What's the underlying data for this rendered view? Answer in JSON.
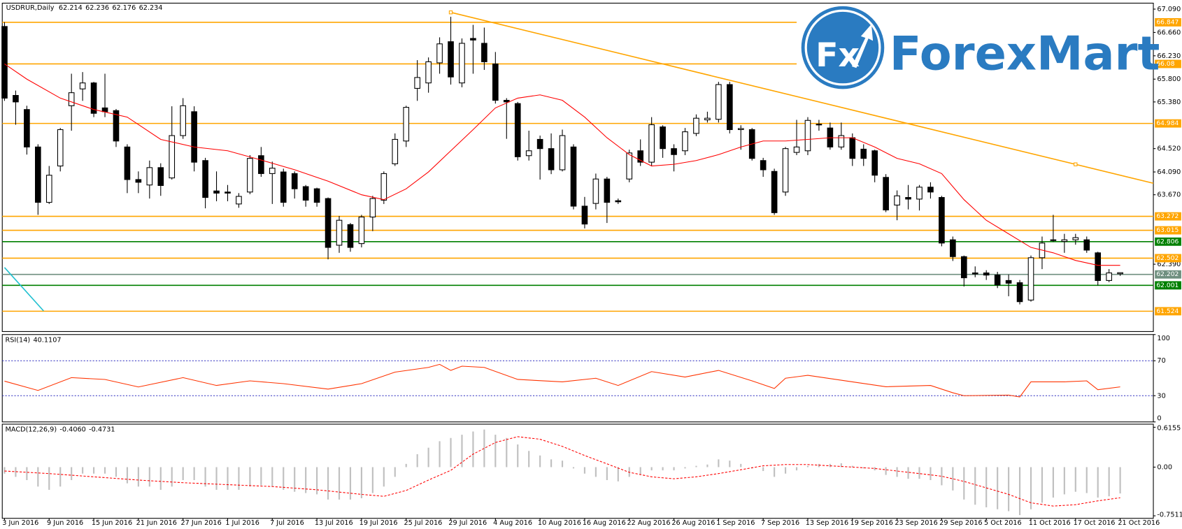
{
  "chart_data": {
    "type": "candlestick",
    "symbol": "USDRUR,Daily",
    "categories": [
      "3 Jun 2016",
      null,
      null,
      null,
      "9 Jun 2016",
      null,
      null,
      null,
      "15 Jun 2016",
      null,
      null,
      null,
      "21 Jun 2016",
      null,
      null,
      null,
      "27 Jun 2016",
      null,
      null,
      null,
      "1 Jul 2016",
      null,
      null,
      null,
      "7 Jul 2016",
      null,
      null,
      null,
      "13 Jul 2016",
      null,
      null,
      null,
      "19 Jul 2016",
      null,
      null,
      null,
      "25 Jul 2016",
      null,
      null,
      null,
      "29 Jul 2016",
      null,
      null,
      null,
      "4 Aug 2016",
      null,
      null,
      null,
      "10 Aug 2016",
      null,
      null,
      null,
      "16 Aug 2016",
      null,
      null,
      null,
      "22 Aug 2016",
      null,
      null,
      null,
      "26 Aug 2016",
      null,
      null,
      null,
      "1 Sep 2016",
      null,
      null,
      null,
      "7 Sep 2016",
      null,
      null,
      null,
      "13 Sep 2016",
      null,
      null,
      null,
      "19 Sep 2016",
      null,
      null,
      null,
      "23 Sep 2016",
      null,
      null,
      null,
      "29 Sep 2016",
      null,
      null,
      null,
      "5 Oct 2016",
      null,
      null,
      null,
      "11 Oct 2016",
      null,
      null,
      null,
      "17 Oct 2016",
      null,
      null,
      null,
      "21 Oct 2016"
    ],
    "open": [
      66.77,
      65.5,
      65.24,
      64.55,
      63.53,
      64.2,
      65.31,
      65.62,
      65.73,
      65.27,
      65.22,
      64.55,
      63.95,
      63.85,
      64.17,
      63.98,
      64.76,
      65.2,
      64.3,
      63.74,
      63.72,
      63.5,
      63.72,
      64.39,
      64.06,
      64.09,
      64.06,
      63.82,
      63.78,
      63.6,
      62.74,
      63.12,
      62.77,
      63.26,
      63.57,
      64.24,
      64.66,
      65.63,
      65.73,
      66.1,
      66.49,
      65.73,
      66.55,
      66.46,
      66.08,
      65.41,
      65.35,
      64.39,
      64.69,
      64.52,
      64.13,
      64.55,
      63.46,
      63.51,
      63.96,
      63.56,
      63.96,
      64.48,
      64.27,
      64.92,
      64.52,
      64.48,
      64.8,
      65.05,
      65.06,
      65.7,
      64.87,
      64.87,
      64.3,
      64.1,
      63.72,
      64.45,
      64.48,
      64.97,
      64.9,
      64.55,
      64.72,
      64.51,
      64.48,
      63.99,
      63.48,
      63.62,
      63.59,
      63.81,
      63.62,
      62.84,
      62.53,
      62.23,
      62.23,
      62.19,
      62.09,
      62.05,
      61.73,
      62.51,
      62.84,
      62.81,
      62.84,
      62.84,
      62.6,
      62.09,
      62.214
    ],
    "high": [
      66.85,
      65.59,
      65.31,
      64.6,
      64.2,
      64.9,
      65.9,
      65.93,
      65.75,
      65.9,
      65.25,
      64.6,
      64.1,
      64.3,
      64.25,
      65.3,
      65.45,
      65.3,
      64.35,
      64.1,
      63.85,
      63.7,
      64.4,
      64.55,
      64.28,
      64.15,
      64.1,
      63.85,
      63.8,
      63.62,
      63.28,
      63.15,
      63.3,
      63.65,
      64.1,
      64.8,
      65.31,
      66.15,
      66.2,
      66.57,
      66.95,
      66.55,
      66.8,
      66.75,
      66.3,
      65.45,
      65.38,
      64.85,
      64.76,
      64.8,
      64.87,
      64.6,
      63.63,
      64.06,
      64.0,
      63.6,
      64.5,
      64.69,
      65.1,
      64.95,
      64.6,
      64.9,
      65.15,
      65.2,
      65.75,
      65.75,
      64.95,
      64.9,
      64.35,
      64.15,
      64.55,
      65.05,
      65.1,
      65.05,
      65.0,
      65.0,
      64.8,
      64.6,
      64.5,
      64.05,
      63.75,
      63.85,
      63.85,
      63.9,
      63.65,
      62.9,
      62.55,
      62.35,
      62.28,
      62.25,
      62.2,
      62.1,
      62.55,
      62.9,
      63.3,
      62.95,
      62.95,
      62.9,
      62.62,
      62.3,
      62.236
    ],
    "low": [
      65.4,
      64.96,
      64.41,
      63.3,
      63.5,
      64.1,
      64.85,
      65.4,
      65.1,
      65.1,
      64.55,
      63.7,
      63.7,
      63.6,
      63.65,
      63.95,
      64.7,
      64.1,
      63.42,
      63.55,
      63.55,
      63.43,
      63.68,
      64.0,
      63.5,
      63.45,
      63.6,
      63.45,
      63.45,
      62.48,
      62.6,
      62.62,
      62.7,
      63.0,
      63.5,
      64.2,
      64.55,
      65.4,
      65.55,
      65.9,
      65.7,
      65.65,
      65.9,
      65.97,
      65.35,
      64.7,
      64.3,
      64.3,
      63.95,
      64.05,
      64.1,
      63.4,
      63.05,
      63.4,
      63.15,
      63.5,
      63.9,
      64.2,
      64.2,
      64.35,
      64.1,
      64.4,
      64.75,
      65.0,
      65.0,
      64.8,
      64.5,
      64.3,
      64.0,
      63.3,
      63.65,
      64.4,
      64.4,
      64.85,
      64.5,
      64.5,
      64.2,
      64.2,
      63.9,
      63.35,
      63.2,
      63.4,
      63.38,
      63.6,
      62.72,
      62.45,
      61.98,
      62.15,
      62.1,
      61.95,
      61.8,
      61.65,
      61.7,
      62.3,
      62.8,
      62.6,
      62.75,
      62.6,
      62.0,
      62.06,
      62.176
    ],
    "close": [
      65.45,
      65.38,
      64.55,
      63.53,
      64.03,
      64.87,
      65.55,
      65.73,
      65.17,
      65.2,
      64.66,
      63.95,
      63.9,
      64.17,
      63.84,
      64.76,
      65.31,
      64.27,
      63.62,
      63.7,
      63.7,
      63.64,
      64.34,
      64.06,
      64.16,
      63.53,
      63.78,
      63.57,
      63.53,
      62.7,
      63.2,
      62.7,
      63.26,
      63.6,
      64.06,
      64.69,
      65.28,
      65.83,
      66.12,
      66.45,
      65.84,
      66.46,
      66.52,
      66.12,
      65.41,
      65.38,
      64.37,
      64.48,
      64.52,
      64.13,
      64.76,
      63.46,
      63.13,
      63.96,
      63.53,
      63.54,
      64.44,
      64.27,
      64.96,
      64.52,
      64.41,
      64.83,
      65.08,
      65.08,
      65.7,
      64.87,
      64.89,
      64.34,
      64.13,
      63.34,
      64.52,
      64.55,
      65.04,
      64.96,
      64.55,
      64.76,
      64.34,
      64.34,
      64.03,
      63.39,
      63.65,
      63.59,
      63.81,
      63.72,
      62.78,
      62.53,
      62.14,
      62.21,
      62.19,
      62.01,
      62.04,
      61.7,
      62.51,
      62.78,
      62.84,
      62.84,
      62.88,
      62.65,
      62.09,
      62.23,
      62.234
    ],
    "ylim": [
      61.15,
      67.2
    ],
    "yticks": [
      {
        "value": 67.09,
        "label": "67.090"
      },
      {
        "value": 66.66,
        "label": "66.660"
      },
      {
        "value": 66.23,
        "label": "66.230"
      },
      {
        "value": 65.8,
        "label": "65.800"
      },
      {
        "value": 65.38,
        "label": "65.380"
      },
      {
        "value": 64.52,
        "label": "64.520"
      },
      {
        "value": 64.09,
        "label": "64.090"
      },
      {
        "value": 63.67,
        "label": "63.670"
      },
      {
        "value": 62.39,
        "label": "62.390"
      }
    ],
    "levels": [
      {
        "value": 66.847,
        "color": "#ffa500",
        "end": 71
      },
      {
        "value": 66.08,
        "color": "#ffa500",
        "end": 71
      },
      {
        "value": 64.984,
        "color": "#ffa500"
      },
      {
        "value": 63.272,
        "color": "#ffa500"
      },
      {
        "value": 63.015,
        "color": "#ffa500"
      },
      {
        "value": 62.806,
        "color": "#008000"
      },
      {
        "value": 62.502,
        "color": "#ffa500"
      },
      {
        "value": 62.202,
        "color": "#6f8f7f"
      },
      {
        "value": 62.001,
        "color": "#008000"
      },
      {
        "value": 61.524,
        "color": "#ffa500"
      }
    ],
    "ma": {
      "color": "#ff0000",
      "x": [
        0,
        2,
        5,
        8,
        11,
        14,
        17,
        20,
        23,
        26,
        29,
        32,
        34,
        36,
        38,
        40,
        42,
        44,
        46,
        48,
        50,
        52,
        54,
        56,
        58,
        60,
        62,
        64,
        66,
        68,
        70,
        72,
        74,
        76,
        78,
        80,
        82,
        84,
        86,
        88,
        90,
        92,
        94,
        96,
        98,
        100
      ],
      "values": [
        66.08,
        65.8,
        65.45,
        65.24,
        65.1,
        64.69,
        64.55,
        64.48,
        64.31,
        64.13,
        63.92,
        63.67,
        63.58,
        63.78,
        64.09,
        64.48,
        64.87,
        65.27,
        65.45,
        65.51,
        65.41,
        65.1,
        64.72,
        64.41,
        64.2,
        64.23,
        64.3,
        64.41,
        64.55,
        64.66,
        64.66,
        64.69,
        64.72,
        64.72,
        64.55,
        64.34,
        64.24,
        64.06,
        63.58,
        63.2,
        62.95,
        62.7,
        62.6,
        62.46,
        62.37,
        62.37
      ]
    },
    "trendline": {
      "color": "#ffa500",
      "x": [
        40,
        96
      ],
      "values": [
        67.03,
        64.23
      ]
    },
    "cycle_line": {
      "color": "#20c0d0",
      "x": [
        0,
        3.5
      ],
      "values": [
        62.33,
        61.53
      ]
    },
    "rsi": {
      "title": "RSI(14)",
      "color": "#ff3300",
      "ylim": [
        0,
        100
      ],
      "yticks": [
        0,
        30,
        70,
        100
      ],
      "levels": [
        30,
        70
      ],
      "x": [
        0,
        3,
        6,
        9,
        12,
        16,
        19,
        22,
        25,
        29,
        32,
        35,
        38,
        39,
        40,
        41,
        43,
        46,
        50,
        53,
        55,
        58,
        61,
        64,
        67,
        69,
        70,
        72,
        76,
        79,
        83,
        85,
        86,
        90,
        91,
        92,
        95,
        97,
        98,
        100
      ],
      "values": [
        46.6,
        36,
        50.7,
        48.6,
        40,
        50.7,
        41.7,
        47,
        43.8,
        37.6,
        43.8,
        57,
        62.4,
        65.9,
        59,
        63.8,
        62.4,
        48.6,
        45.9,
        50,
        41.7,
        57.6,
        51.4,
        59,
        47,
        38.3,
        50,
        53.4,
        45.9,
        40.3,
        41.7,
        33.4,
        30,
        30.7,
        28.6,
        45.9,
        45.9,
        47,
        36.9,
        40.1107
      ]
    },
    "macd": {
      "title": "MACD(12,26,9)",
      "ylim": [
        -0.79,
        0.663
      ],
      "yticks": [
        {
          "value": 0.6155,
          "label": "0.6155"
        },
        {
          "value": 0,
          "label": "0.00"
        },
        {
          "value": -0.7511,
          "label": "-0.7511"
        }
      ],
      "histogram": {
        "color": "#c0c0c0",
        "last_label": "-0.4060",
        "values": [
          -0.1,
          -0.15,
          -0.2,
          -0.3,
          -0.35,
          -0.3,
          -0.2,
          -0.1,
          -0.1,
          -0.1,
          -0.15,
          -0.25,
          -0.3,
          -0.3,
          -0.35,
          -0.3,
          -0.2,
          -0.2,
          -0.3,
          -0.35,
          -0.35,
          -0.35,
          -0.3,
          -0.28,
          -0.3,
          -0.35,
          -0.38,
          -0.4,
          -0.42,
          -0.5,
          -0.5,
          -0.5,
          -0.48,
          -0.4,
          -0.3,
          -0.15,
          0.05,
          0.2,
          0.3,
          0.4,
          0.45,
          0.5,
          0.55,
          0.58,
          0.5,
          0.45,
          0.35,
          0.25,
          0.18,
          0.12,
          0.1,
          -0.02,
          -0.1,
          -0.15,
          -0.2,
          -0.22,
          -0.15,
          -0.12,
          -0.05,
          -0.05,
          -0.05,
          -0.02,
          0.02,
          0.04,
          0.12,
          0.1,
          0.05,
          -0.02,
          -0.06,
          -0.15,
          -0.1,
          -0.05,
          0.02,
          0.05,
          0.05,
          0.06,
          0.02,
          -0.02,
          -0.05,
          -0.12,
          -0.15,
          -0.18,
          -0.18,
          -0.2,
          -0.28,
          -0.36,
          -0.5,
          -0.58,
          -0.62,
          -0.65,
          -0.68,
          -0.74,
          -0.65,
          -0.55,
          -0.47,
          -0.42,
          -0.38,
          -0.4,
          -0.47,
          -0.45,
          -0.406
        ]
      },
      "signal": {
        "color": "#ff0000",
        "last_label": "-0.4731",
        "x": [
          0,
          4,
          8,
          12,
          16,
          20,
          24,
          28,
          32,
          34,
          36,
          38,
          40,
          42,
          44,
          46,
          48,
          50,
          52,
          54,
          56,
          58,
          60,
          62,
          64,
          66,
          68,
          70,
          72,
          74,
          76,
          78,
          80,
          82,
          84,
          86,
          88,
          90,
          92,
          94,
          96,
          98,
          100
        ],
        "values": [
          -0.06,
          -0.1,
          -0.15,
          -0.2,
          -0.24,
          -0.27,
          -0.3,
          -0.35,
          -0.42,
          -0.45,
          -0.36,
          -0.2,
          -0.05,
          0.2,
          0.38,
          0.47,
          0.43,
          0.32,
          0.18,
          0.05,
          -0.08,
          -0.15,
          -0.18,
          -0.15,
          -0.1,
          -0.04,
          0.02,
          0.04,
          0.04,
          0.02,
          0.0,
          -0.02,
          -0.06,
          -0.1,
          -0.14,
          -0.22,
          -0.32,
          -0.42,
          -0.55,
          -0.6,
          -0.58,
          -0.52,
          -0.4731
        ]
      }
    },
    "logo": {
      "mark": "Fx",
      "text": "ForexMart"
    }
  }
}
